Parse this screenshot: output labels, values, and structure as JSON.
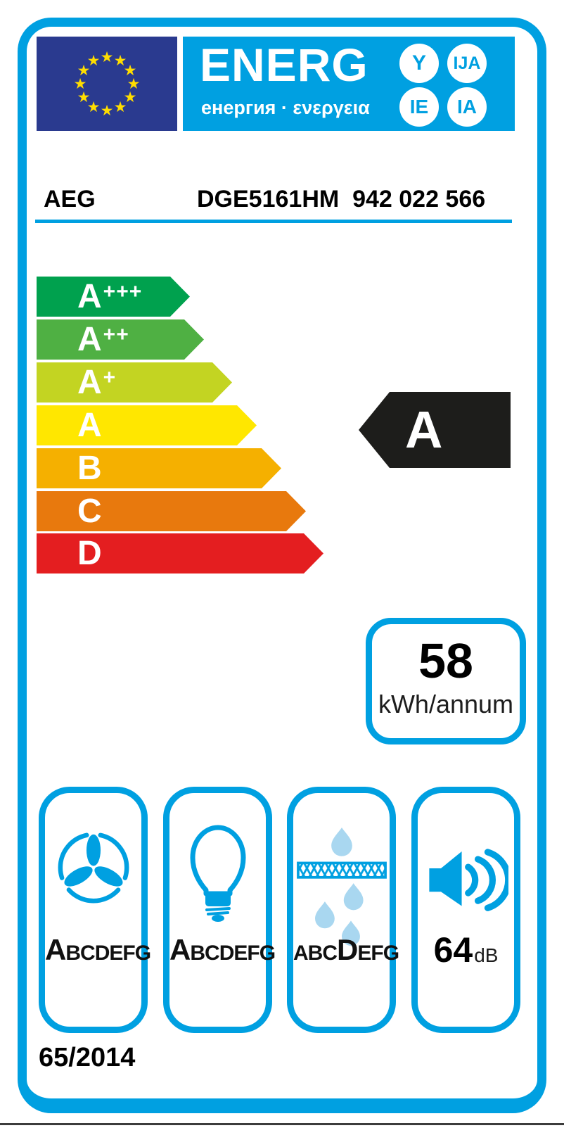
{
  "banner": {
    "word_main": "ENERG",
    "word_suffixes": [
      "Y",
      "IJA",
      "IE",
      "IA"
    ],
    "subtitle": "енергия · ενεργεια"
  },
  "product": {
    "brand": "AEG",
    "model": "DGE5161HM  942 022 566"
  },
  "scale": {
    "items": [
      {
        "label": "A",
        "suffix": "+++",
        "color": "#00a14e"
      },
      {
        "label": "A",
        "suffix": "++",
        "color": "#4fb043"
      },
      {
        "label": "A",
        "suffix": "+",
        "color": "#c3d422"
      },
      {
        "label": "A",
        "suffix": "",
        "color": "#ffe700"
      },
      {
        "label": "B",
        "suffix": "",
        "color": "#f5b000"
      },
      {
        "label": "C",
        "suffix": "",
        "color": "#e8790d"
      },
      {
        "label": "D",
        "suffix": "",
        "color": "#e41e20"
      }
    ]
  },
  "rating": {
    "class_letter": "A",
    "arrow_color": "#1d1d1b"
  },
  "energy": {
    "value": "58",
    "unit": "kWh/annum"
  },
  "metrics": {
    "fan": {
      "icon": "fan-icon",
      "letters": "ABCDEFG",
      "highlight": 0
    },
    "lighting": {
      "icon": "bulb-icon",
      "letters": "ABCDEFG",
      "highlight": 0
    },
    "grease": {
      "icon": "grease-filter-icon",
      "letters": "ABCDEFG",
      "highlight": 3
    },
    "noise": {
      "icon": "speaker-icon",
      "value": "64",
      "unit": "dB"
    }
  },
  "footer": {
    "regulation": "65/2014"
  },
  "colors": {
    "accent_blue": "#00a0e1",
    "eu_blue": "#2a3a8f",
    "star_yellow": "#ffdd00",
    "light_drop_blue": "#a9d7f0"
  }
}
